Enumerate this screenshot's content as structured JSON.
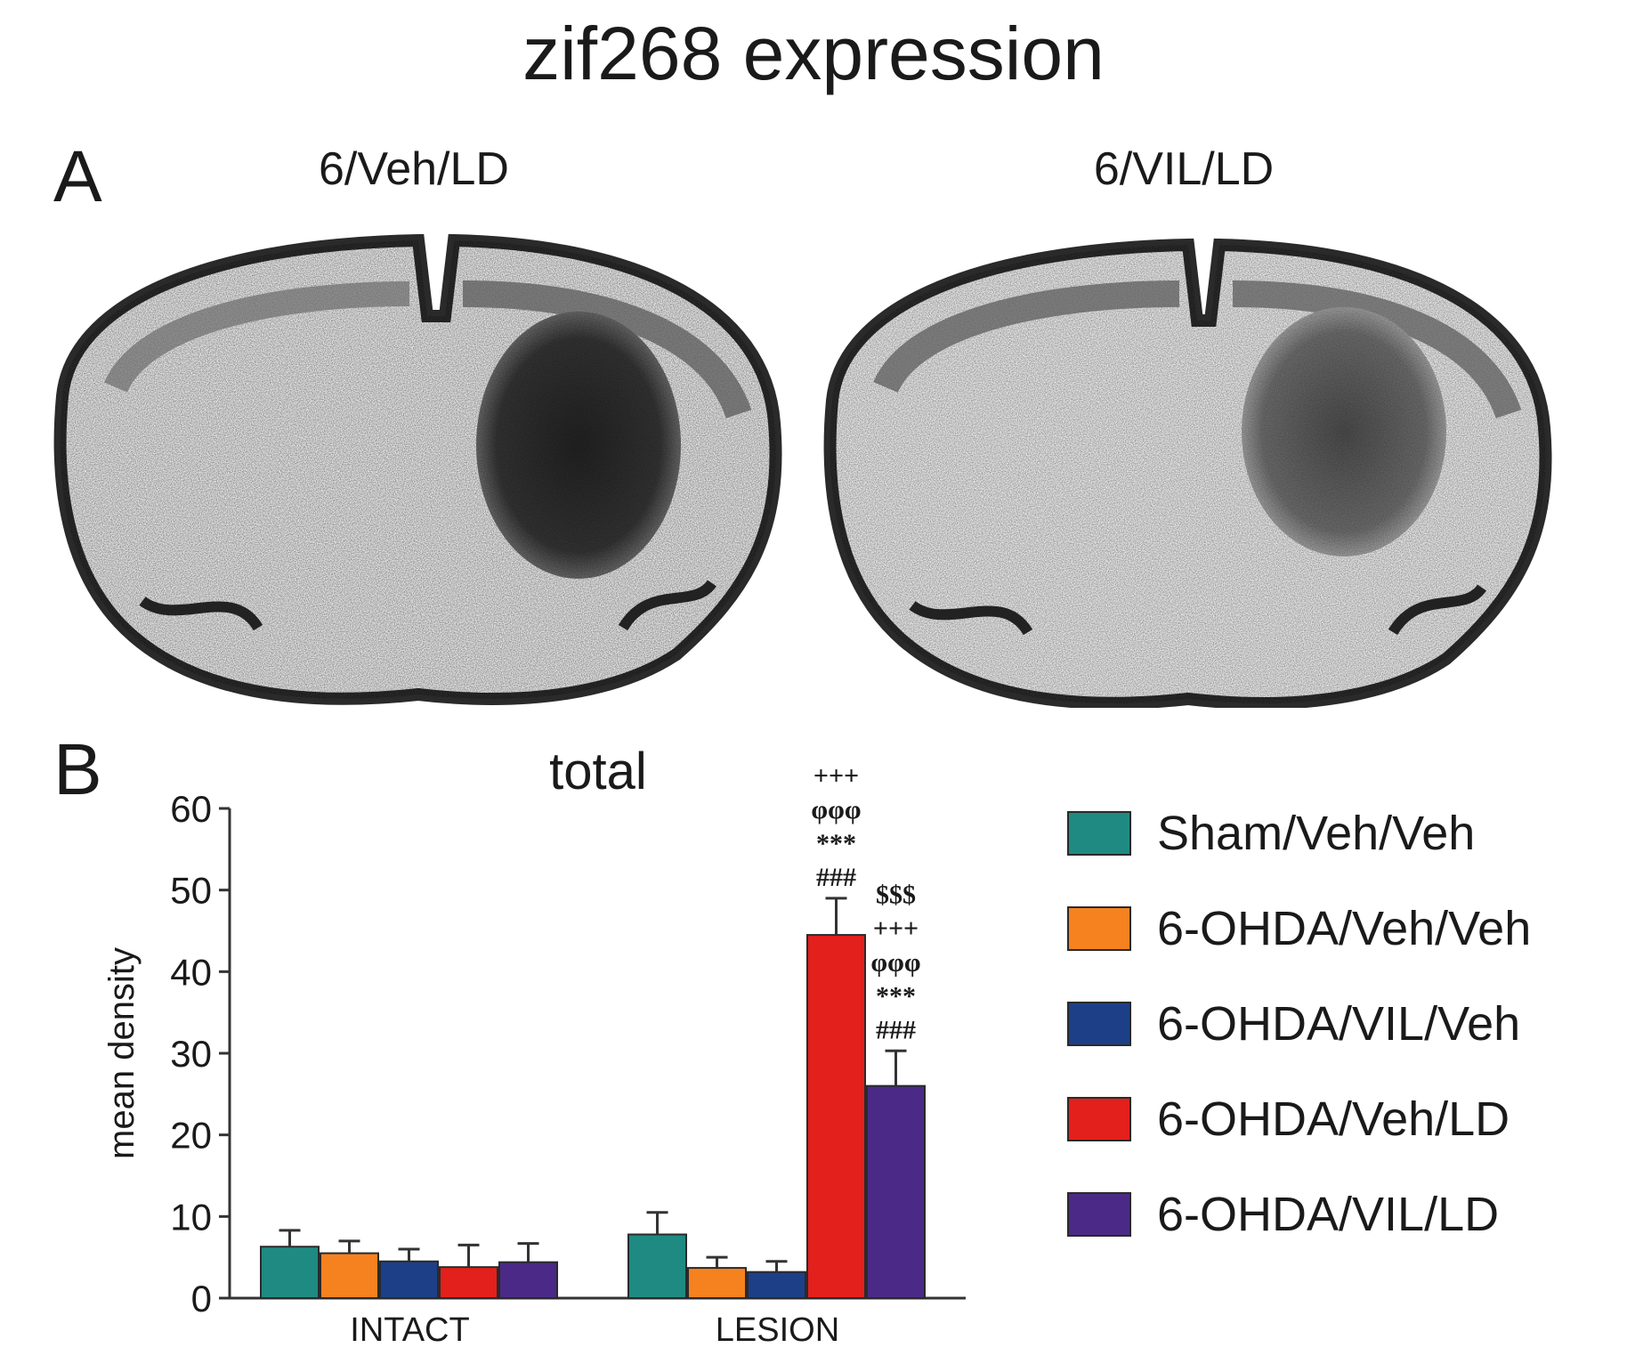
{
  "figure": {
    "title": "zif268 expression",
    "panel_a": {
      "label": "A",
      "left_caption": "6/Veh/LD",
      "right_caption": "6/VIL/LD"
    },
    "panel_b": {
      "label": "B"
    }
  },
  "colors": {
    "Sham/Veh/Veh": "#1f8a82",
    "6-OHDA/Veh/Veh": "#f5821f",
    "6-OHDA/VIL/Veh": "#1d3f87",
    "6-OHDA/Veh/LD": "#e3201b",
    "6-OHDA/VIL/LD": "#4a2a86"
  },
  "chart_data": {
    "type": "bar",
    "title": "total",
    "xlabel": "",
    "ylabel": "mean density",
    "ylim": [
      0,
      60
    ],
    "yticks": [
      0,
      10,
      20,
      30,
      40,
      50,
      60
    ],
    "categories": [
      "INTACT",
      "LESION"
    ],
    "series": [
      {
        "name": "Sham/Veh/Veh",
        "values": [
          6.3,
          7.8
        ],
        "errors": [
          2.0,
          2.7
        ]
      },
      {
        "name": "6-OHDA/Veh/Veh",
        "values": [
          5.5,
          3.7
        ],
        "errors": [
          1.5,
          1.3
        ]
      },
      {
        "name": "6-OHDA/VIL/Veh",
        "values": [
          4.5,
          3.2
        ],
        "errors": [
          1.5,
          1.3
        ]
      },
      {
        "name": "6-OHDA/Veh/LD",
        "values": [
          3.8,
          44.5
        ],
        "errors": [
          2.7,
          4.5
        ]
      },
      {
        "name": "6-OHDA/VIL/LD",
        "values": [
          4.4,
          26.0
        ],
        "errors": [
          2.3,
          4.3
        ]
      }
    ],
    "annotations": [
      {
        "series": "6-OHDA/Veh/LD",
        "category": "LESION",
        "lines": [
          "+++",
          "φφφ",
          "***",
          "###"
        ]
      },
      {
        "series": "6-OHDA/VIL/LD",
        "category": "LESION",
        "lines": [
          "$$$",
          "+++",
          "φφφ",
          "***",
          "###"
        ]
      }
    ],
    "legend_position": "right",
    "grid": false
  }
}
